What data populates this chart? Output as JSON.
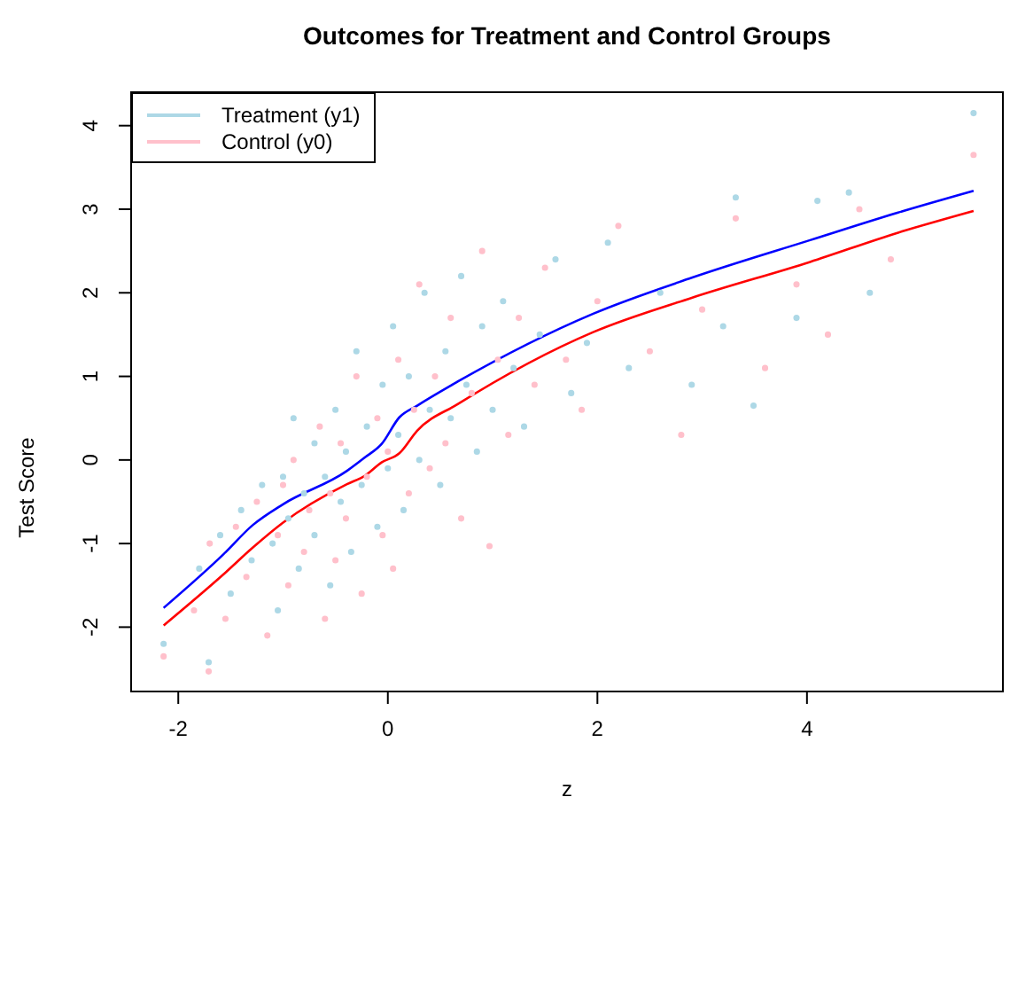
{
  "chart_data": {
    "type": "scatter",
    "title": "Outcomes for Treatment and Control Groups",
    "xlabel": "z",
    "ylabel": "Test Score",
    "xlim": [
      -2.45,
      5.87
    ],
    "ylim": [
      -2.77,
      4.4
    ],
    "xticks": [
      -2,
      0,
      2,
      4
    ],
    "yticks": [
      -2,
      -1,
      0,
      1,
      2,
      3,
      4
    ],
    "grid": false,
    "legend": "top left",
    "marker": "circle",
    "series": [
      {
        "name": "Treatment (y1)",
        "color": "#add8e6",
        "x": [
          -2.14,
          -1.71,
          -1.8,
          -1.6,
          -1.5,
          -1.4,
          -1.3,
          -1.2,
          -1.1,
          -1.05,
          -1.0,
          -0.95,
          -0.9,
          -0.85,
          -0.8,
          -0.7,
          -0.7,
          -0.6,
          -0.55,
          -0.5,
          -0.45,
          -0.4,
          -0.35,
          -0.3,
          -0.25,
          -0.2,
          -0.1,
          -0.05,
          0.0,
          0.05,
          0.1,
          0.15,
          0.2,
          0.3,
          0.35,
          0.4,
          0.5,
          0.55,
          0.6,
          0.7,
          0.75,
          0.85,
          0.9,
          1.0,
          1.1,
          1.2,
          1.3,
          1.45,
          1.6,
          1.75,
          1.9,
          2.1,
          2.3,
          2.6,
          2.9,
          3.2,
          3.32,
          3.49,
          3.9,
          4.1,
          4.4,
          4.6,
          5.59
        ],
        "values": [
          -2.2,
          -2.42,
          -1.3,
          -0.9,
          -1.6,
          -0.6,
          -1.2,
          -0.3,
          -1.0,
          -1.8,
          -0.2,
          -0.7,
          0.5,
          -1.3,
          -0.4,
          0.2,
          -0.9,
          -0.2,
          -1.5,
          0.6,
          -0.5,
          0.1,
          -1.1,
          1.3,
          -0.3,
          0.4,
          -0.8,
          0.9,
          -0.1,
          1.6,
          0.3,
          -0.6,
          1.0,
          0.0,
          2.0,
          0.6,
          -0.3,
          1.3,
          0.5,
          2.2,
          0.9,
          0.1,
          1.6,
          0.6,
          1.9,
          1.1,
          0.4,
          1.5,
          2.4,
          0.8,
          1.4,
          2.6,
          1.1,
          2.0,
          0.9,
          1.6,
          3.14,
          0.65,
          1.7,
          3.1,
          3.2,
          2.0,
          4.15
        ]
      },
      {
        "name": "Control (y0)",
        "color": "#ffc0cb",
        "x": [
          -2.14,
          -1.71,
          -1.85,
          -1.7,
          -1.55,
          -1.45,
          -1.35,
          -1.25,
          -1.15,
          -1.05,
          -1.0,
          -0.95,
          -0.9,
          -0.8,
          -0.75,
          -0.65,
          -0.6,
          -0.55,
          -0.5,
          -0.45,
          -0.4,
          -0.3,
          -0.25,
          -0.2,
          -0.1,
          -0.05,
          0.0,
          0.05,
          0.1,
          0.2,
          0.25,
          0.3,
          0.4,
          0.45,
          0.55,
          0.6,
          0.7,
          0.8,
          0.9,
          0.97,
          1.05,
          1.15,
          1.25,
          1.4,
          1.5,
          1.7,
          1.85,
          2.0,
          2.2,
          2.5,
          2.8,
          3.0,
          3.32,
          3.6,
          3.9,
          4.2,
          4.5,
          4.8,
          5.59
        ],
        "values": [
          -2.35,
          -2.53,
          -1.8,
          -1.0,
          -1.9,
          -0.8,
          -1.4,
          -0.5,
          -2.1,
          -0.9,
          -0.3,
          -1.5,
          0.0,
          -1.1,
          -0.6,
          0.4,
          -1.9,
          -0.4,
          -1.2,
          0.2,
          -0.7,
          1.0,
          -1.6,
          -0.2,
          0.5,
          -0.9,
          0.1,
          -1.3,
          1.2,
          -0.4,
          0.6,
          2.1,
          -0.1,
          1.0,
          0.2,
          1.7,
          -0.7,
          0.8,
          2.5,
          -1.03,
          1.2,
          0.3,
          1.7,
          0.9,
          2.3,
          1.2,
          0.6,
          1.9,
          2.8,
          1.3,
          0.3,
          1.8,
          2.89,
          1.1,
          2.1,
          1.5,
          3.0,
          2.4,
          3.65
        ]
      },
      {
        "type": "line",
        "color": "#0000ff",
        "marker": "none",
        "x": [
          -2.14,
          -1.57,
          -1.29,
          -1.0,
          -0.39,
          -0.22,
          -0.06,
          0.11,
          0.28,
          0.67,
          1.96,
          2.9,
          4.03,
          4.87,
          5.59
        ],
        "values": [
          -1.77,
          -1.13,
          -0.78,
          -0.53,
          -0.13,
          0.03,
          0.19,
          0.51,
          0.65,
          0.94,
          1.75,
          2.18,
          2.63,
          2.96,
          3.22
        ]
      },
      {
        "type": "line",
        "color": "#ff0000",
        "marker": "none",
        "x": [
          -2.14,
          -1.57,
          -1.29,
          -1.0,
          -0.39,
          -0.22,
          -0.06,
          0.11,
          0.28,
          0.67,
          1.96,
          2.9,
          4.03,
          4.87,
          5.59
        ],
        "values": [
          -1.98,
          -1.37,
          -1.05,
          -0.75,
          -0.29,
          -0.19,
          -0.03,
          0.08,
          0.35,
          0.67,
          1.53,
          1.94,
          2.37,
          2.72,
          2.98
        ]
      }
    ]
  }
}
